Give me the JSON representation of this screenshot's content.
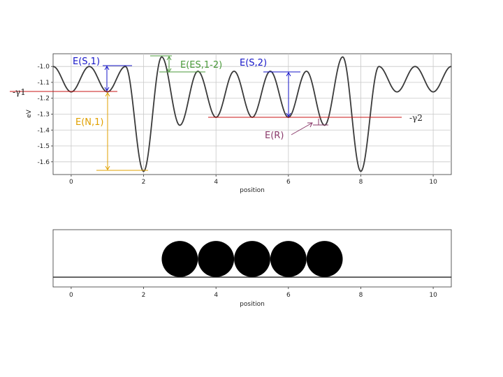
{
  "chart_data": [
    {
      "type": "line",
      "title": "",
      "xlabel": "position",
      "ylabel": "eV",
      "xlim": [
        -0.5,
        10.5
      ],
      "ylim": [
        -1.68,
        -0.92
      ],
      "xticks": [
        "0",
        "2",
        "4",
        "6",
        "8",
        "10"
      ],
      "xtick_values": [
        0,
        2,
        4,
        6,
        8,
        10
      ],
      "yticks": [
        "-1.0",
        "-1.1",
        "-1.2",
        "-1.3",
        "-1.4",
        "-1.5",
        "-1.6"
      ],
      "ytick_values": [
        -1.0,
        -1.1,
        -1.2,
        -1.3,
        -1.4,
        -1.5,
        -1.6
      ],
      "grid": true,
      "series": [
        {
          "color": "#3a3a3a",
          "x": [
            -0.5,
            0,
            0.5,
            1,
            1.5,
            2,
            2.5,
            3,
            3.5,
            4,
            4.5,
            5,
            5.5,
            6,
            6.5,
            7,
            7.5,
            8,
            8.5,
            9,
            9.5,
            10,
            10.5
          ],
          "y": [
            -1.0,
            -1.16,
            -1.0,
            -1.16,
            -1.0,
            -1.66,
            -0.94,
            -1.37,
            -1.03,
            -1.32,
            -1.03,
            -1.32,
            -1.03,
            -1.32,
            -1.03,
            -1.37,
            -0.94,
            -1.66,
            -1.0,
            -1.16,
            -1.0,
            -1.16,
            -1.0
          ]
        }
      ],
      "annotations": [
        {
          "label": "E(S,1)",
          "color": "#1515c8"
        },
        {
          "label": "E(ES,1-2)",
          "color": "#4a9a3a"
        },
        {
          "label": "E(S,2)",
          "color": "#1515c8"
        },
        {
          "label": "-γ1",
          "color": "#222222"
        },
        {
          "label": "-γ2",
          "color": "#222222"
        },
        {
          "label": "E(N,1)",
          "color": "#e0a000"
        },
        {
          "label": "E(R)",
          "color": "#8a3a6a"
        }
      ],
      "levels": [
        {
          "name": "-γ1",
          "y": -1.16,
          "color": "#c81414"
        },
        {
          "name": "-γ2",
          "y": -1.32,
          "color": "#c81414"
        }
      ]
    },
    {
      "type": "scatter",
      "title": "",
      "xlabel": "position",
      "xlim": [
        -0.5,
        10.5
      ],
      "xticks": [
        "0",
        "2",
        "4",
        "6",
        "8",
        "10"
      ],
      "xtick_values": [
        0,
        2,
        4,
        6,
        8,
        10
      ],
      "grid": false,
      "particles_x": [
        3,
        4,
        5,
        6,
        7
      ],
      "particle_color": "#000000"
    }
  ]
}
